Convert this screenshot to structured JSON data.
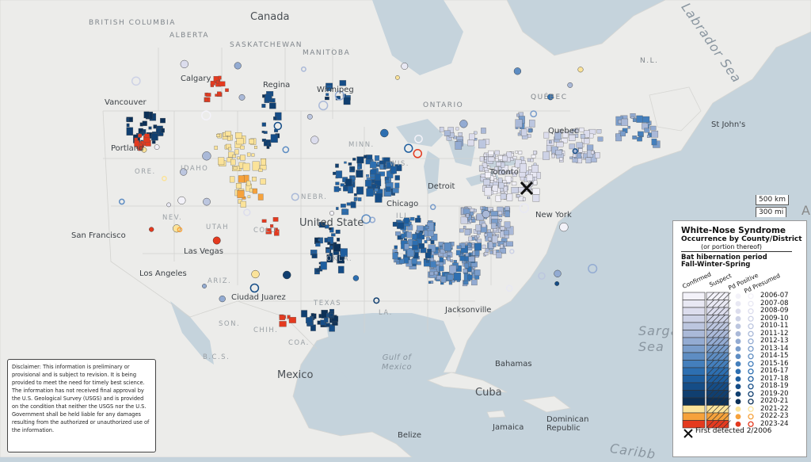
{
  "map": {
    "labels": {
      "country": {
        "canada": "Canada",
        "united_states": "United State",
        "mexico": "Mexico",
        "cuba": "Cuba",
        "bahamas": "Bahamas",
        "dominican_republic": "Dominican\nRepublic",
        "jamaica": "Jamaica",
        "belize": "Belize"
      },
      "provinces": {
        "british_columbia": "BRITISH\nCOLUMBIA",
        "alberta": "ALBERTA",
        "saskatchewan": "SASKATCHEWAN",
        "manitoba": "MANITOBA",
        "ontario": "ONTARIO",
        "quebec": "QUÉBEC",
        "nl": "N.L."
      },
      "states": {
        "ore": "ORE.",
        "idaho": "IDAHO",
        "nev": "NEV.",
        "utah": "UTAH",
        "colo": "COLO.",
        "ariz": "ARIZ.",
        "nebr": "NEBR.",
        "wis": "WIS.",
        "minn": "MINN.",
        "ill": "ILL.",
        "okla": "OKLA.",
        "texas": "TEXAS",
        "coa": "COA.",
        "bcs": "B.C.S.",
        "son": "SON.",
        "chih": "CHIH.",
        "la": "LA."
      },
      "cities": {
        "vancouver": "Vancouver",
        "calgary": "Calgary",
        "regina": "Regina",
        "winnipeg": "Winnipeg",
        "portland": "Portland",
        "san_francisco": "San Francisco",
        "las_vegas": "Las Vegas",
        "los_angeles": "Los Angeles",
        "ciudad_juarez": "Ciudad Juarez",
        "chicago": "Chicago",
        "detroit": "Detroit",
        "toronto": "Toronto",
        "new_york": "New York",
        "jacksonville": "Jacksonville",
        "quebec": "Quebec",
        "st_johns": "St John's"
      },
      "water": {
        "labrador_sea": "Labrador Sea",
        "gulf_of_mexico": "Gulf of\nMexico",
        "sargasso_sea": "Sargasso\nSea",
        "caribbean": "Caribb"
      }
    },
    "disclaimer": "Disclaimer: This information is preliminary or provisional and is subject to revision. It is being provided to meet the need for timely best science. The information has not received final approval by the U.S. Geological Survey (USGS) and is provided on the condition that neither the USGS nor the U.S. Government shall be held liable for any damages resulting from the authorized or unauthorized use of the information.",
    "scale": {
      "km": "500 km",
      "mi": "300 mi"
    }
  },
  "legend": {
    "title": "White-Nose Syndrome",
    "subtitle": "Occurrence by County/District",
    "subtitle2": "(or portion thereof)",
    "period1": "Bat hibernation period",
    "period2": "Fall-Winter-Spring",
    "columns": {
      "confirmed": "Confirmed",
      "suspect": "Suspect",
      "pd_positive": "Pd Positive",
      "pd_presumed": "Pd Presumed"
    },
    "years": [
      "2006-07",
      "2007-08",
      "2008-09",
      "2009-10",
      "2010-11",
      "2011-12",
      "2012-13",
      "2013-14",
      "2014-15",
      "2015-16",
      "2016-17",
      "2017-18",
      "2018-19",
      "2019-20",
      "2020-21",
      "2021-22",
      "2022-23",
      "2023-24"
    ],
    "colors": [
      "#f3f2f9",
      "#e8e8f3",
      "#dcdded",
      "#cdd2e6",
      "#bcc6df",
      "#aab9d8",
      "#93abd2",
      "#7a9dcb",
      "#5e8dc3",
      "#447fbc",
      "#2d6fb1",
      "#1e5e9f",
      "#154d87",
      "#103f70",
      "#0c3057",
      "#fbe39a",
      "#f6a23c",
      "#e43a1f"
    ],
    "first_detected": "First detected 2/2006"
  }
}
